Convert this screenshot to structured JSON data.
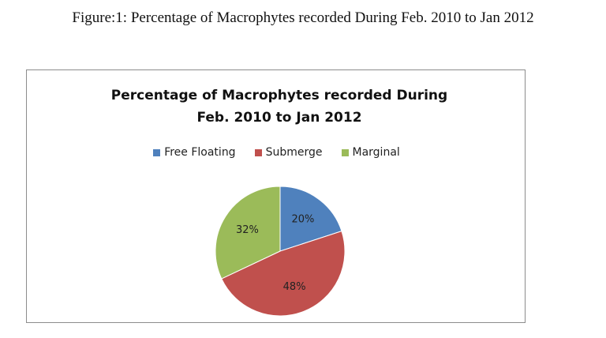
{
  "caption": "Figure:1: Percentage of Macrophytes recorded During Feb. 2010 to Jan 2012",
  "chart_data": {
    "type": "pie",
    "title": "Percentage of Macrophytes recorded During Feb. 2010 to Jan 2012",
    "categories": [
      "Free Floating",
      "Submerge",
      "Marginal"
    ],
    "values": [
      20,
      48,
      32
    ],
    "value_labels": [
      "20%",
      "48%",
      "32%"
    ],
    "colors": [
      "#4f81bd",
      "#c0504d",
      "#9bbb59"
    ]
  }
}
